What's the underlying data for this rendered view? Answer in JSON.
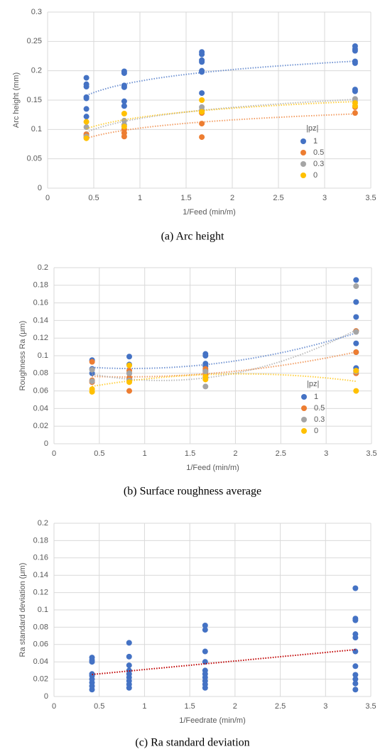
{
  "chart_data": [
    {
      "type": "scatter",
      "caption": "(a)  Arc height",
      "x_label": "1/Feed (min/m)",
      "y_label": "Arc height (mm)",
      "xlim": [
        0,
        3.5
      ],
      "xticks": [
        0,
        0.5,
        1,
        1.5,
        2,
        2.5,
        3,
        3.5
      ],
      "ylim": [
        0,
        0.3
      ],
      "yticks": [
        0,
        0.05,
        0.1,
        0.15,
        0.2,
        0.25,
        0.3
      ],
      "grid": true,
      "trendline": "log",
      "legend": "lower right",
      "legend_title": "|pz|",
      "series": [
        {
          "name": "1",
          "color": "#4472c4",
          "x": [
            0.42,
            0.42,
            0.42,
            0.42,
            0.42,
            0.42,
            0.42,
            0.83,
            0.83,
            0.83,
            0.83,
            0.83,
            0.83,
            1.67,
            1.67,
            1.67,
            1.67,
            1.67,
            1.67,
            1.67,
            3.33,
            3.33,
            3.33,
            3.33,
            3.33,
            3.33,
            3.33
          ],
          "values": [
            0.188,
            0.177,
            0.173,
            0.155,
            0.153,
            0.135,
            0.122,
            0.199,
            0.196,
            0.175,
            0.172,
            0.148,
            0.14,
            0.232,
            0.228,
            0.218,
            0.215,
            0.2,
            0.198,
            0.162,
            0.242,
            0.237,
            0.234,
            0.216,
            0.213,
            0.168,
            0.165
          ]
        },
        {
          "name": "0.5",
          "color": "#ed7d31",
          "x": [
            0.42,
            0.42,
            0.42,
            0.83,
            0.83,
            0.83,
            1.67,
            1.67,
            1.67,
            3.33,
            3.33
          ],
          "values": [
            0.092,
            0.09,
            0.086,
            0.094,
            0.088,
            0.1,
            0.128,
            0.11,
            0.087,
            0.138,
            0.128
          ]
        },
        {
          "name": "0.3",
          "color": "#a5a5a5",
          "x": [
            0.42,
            0.42,
            0.83,
            0.83,
            1.67,
            1.67,
            3.33,
            3.33
          ],
          "values": [
            0.104,
            0.088,
            0.115,
            0.108,
            0.138,
            0.133,
            0.152,
            0.148
          ]
        },
        {
          "name": "0",
          "color": "#ffc000",
          "x": [
            0.42,
            0.42,
            0.83,
            0.83,
            1.67,
            1.67,
            3.33,
            3.33
          ],
          "values": [
            0.113,
            0.085,
            0.127,
            0.105,
            0.15,
            0.13,
            0.145,
            0.14
          ]
        }
      ]
    },
    {
      "type": "scatter",
      "caption": "(b)  Surface roughness average",
      "x_label": "1/Feed (min/m)",
      "y_label": "Roughness Ra (μm)",
      "xlim": [
        0,
        3.5
      ],
      "xticks": [
        0,
        0.5,
        1,
        1.5,
        2,
        2.5,
        3,
        3.5
      ],
      "ylim": [
        0,
        0.2
      ],
      "yticks": [
        0,
        0.02,
        0.04,
        0.06,
        0.08,
        0.1,
        0.12,
        0.14,
        0.16,
        0.18,
        0.2
      ],
      "grid": true,
      "trendline": "poly2",
      "legend": "lower right",
      "legend_title": "|pz|",
      "series": [
        {
          "name": "1",
          "color": "#4472c4",
          "x": [
            0.42,
            0.42,
            0.42,
            0.83,
            0.83,
            0.83,
            0.83,
            1.67,
            1.67,
            1.67,
            1.67,
            1.67,
            1.67,
            3.33,
            3.33,
            3.33,
            3.33,
            3.33,
            3.33,
            3.33,
            3.33
          ],
          "values": [
            0.095,
            0.085,
            0.08,
            0.099,
            0.09,
            0.08,
            0.073,
            0.102,
            0.1,
            0.091,
            0.088,
            0.083,
            0.075,
            0.186,
            0.161,
            0.144,
            0.128,
            0.114,
            0.104,
            0.086,
            0.083
          ]
        },
        {
          "name": "0.5",
          "color": "#ed7d31",
          "x": [
            0.42,
            0.42,
            0.42,
            0.83,
            0.83,
            0.83,
            1.67,
            1.67,
            1.67,
            3.33,
            3.33,
            3.33
          ],
          "values": [
            0.093,
            0.072,
            0.07,
            0.083,
            0.06,
            0.075,
            0.085,
            0.08,
            0.078,
            0.128,
            0.104,
            0.08
          ]
        },
        {
          "name": "0.3",
          "color": "#a5a5a5",
          "x": [
            0.42,
            0.42,
            0.83,
            0.83,
            1.67,
            1.67,
            3.33,
            3.33,
            3.33
          ],
          "values": [
            0.084,
            0.071,
            0.08,
            0.072,
            0.082,
            0.065,
            0.179,
            0.127,
            0.082
          ]
        },
        {
          "name": "0",
          "color": "#ffc000",
          "x": [
            0.42,
            0.42,
            0.83,
            0.83,
            1.67,
            1.67,
            3.33,
            3.33
          ],
          "values": [
            0.062,
            0.059,
            0.089,
            0.07,
            0.076,
            0.073,
            0.083,
            0.06
          ]
        }
      ]
    },
    {
      "type": "scatter",
      "caption": "(c)  Ra standard deviation",
      "x_label": "1/Feedrate (min/m)",
      "y_label": "Ra standard deviation (μm)",
      "xlim": [
        0,
        3.5
      ],
      "xticks": [
        0,
        0.5,
        1,
        1.5,
        2,
        2.5,
        3,
        3.5
      ],
      "ylim": [
        0,
        0.2
      ],
      "yticks": [
        0,
        0.02,
        0.04,
        0.06,
        0.08,
        0.1,
        0.12,
        0.14,
        0.16,
        0.18,
        0.2
      ],
      "grid": true,
      "trendline": "linear",
      "trendline_color": "#c00000",
      "series": [
        {
          "color": "#4472c4",
          "x": [
            0.42,
            0.42,
            0.42,
            0.42,
            0.42,
            0.42,
            0.42,
            0.42,
            0.42,
            0.83,
            0.83,
            0.83,
            0.83,
            0.83,
            0.83,
            0.83,
            0.83,
            0.83,
            1.67,
            1.67,
            1.67,
            1.67,
            1.67,
            1.67,
            1.67,
            1.67,
            1.67,
            1.67,
            3.33,
            3.33,
            3.33,
            3.33,
            3.33,
            3.33,
            3.33,
            3.33,
            3.33,
            3.33,
            3.33
          ],
          "values": [
            0.045,
            0.042,
            0.04,
            0.026,
            0.024,
            0.02,
            0.016,
            0.012,
            0.008,
            0.062,
            0.046,
            0.036,
            0.03,
            0.026,
            0.022,
            0.018,
            0.014,
            0.01,
            0.082,
            0.077,
            0.052,
            0.04,
            0.03,
            0.026,
            0.022,
            0.018,
            0.014,
            0.01,
            0.125,
            0.09,
            0.088,
            0.072,
            0.068,
            0.052,
            0.035,
            0.025,
            0.02,
            0.015,
            0.008
          ]
        }
      ]
    }
  ]
}
